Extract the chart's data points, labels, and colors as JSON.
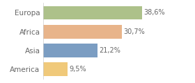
{
  "categories": [
    "America",
    "Asia",
    "Africa",
    "Europa"
  ],
  "values": [
    9.5,
    21.2,
    30.7,
    38.6
  ],
  "labels": [
    "9,5%",
    "21,2%",
    "30,7%",
    "38,6%"
  ],
  "bar_colors": [
    "#f0c97a",
    "#7b9dc2",
    "#e8b48a",
    "#adc18a"
  ],
  "background_color": "#ffffff",
  "xlim": [
    0,
    50
  ],
  "bar_height": 0.72,
  "label_fontsize": 7.0,
  "tick_fontsize": 7.5
}
